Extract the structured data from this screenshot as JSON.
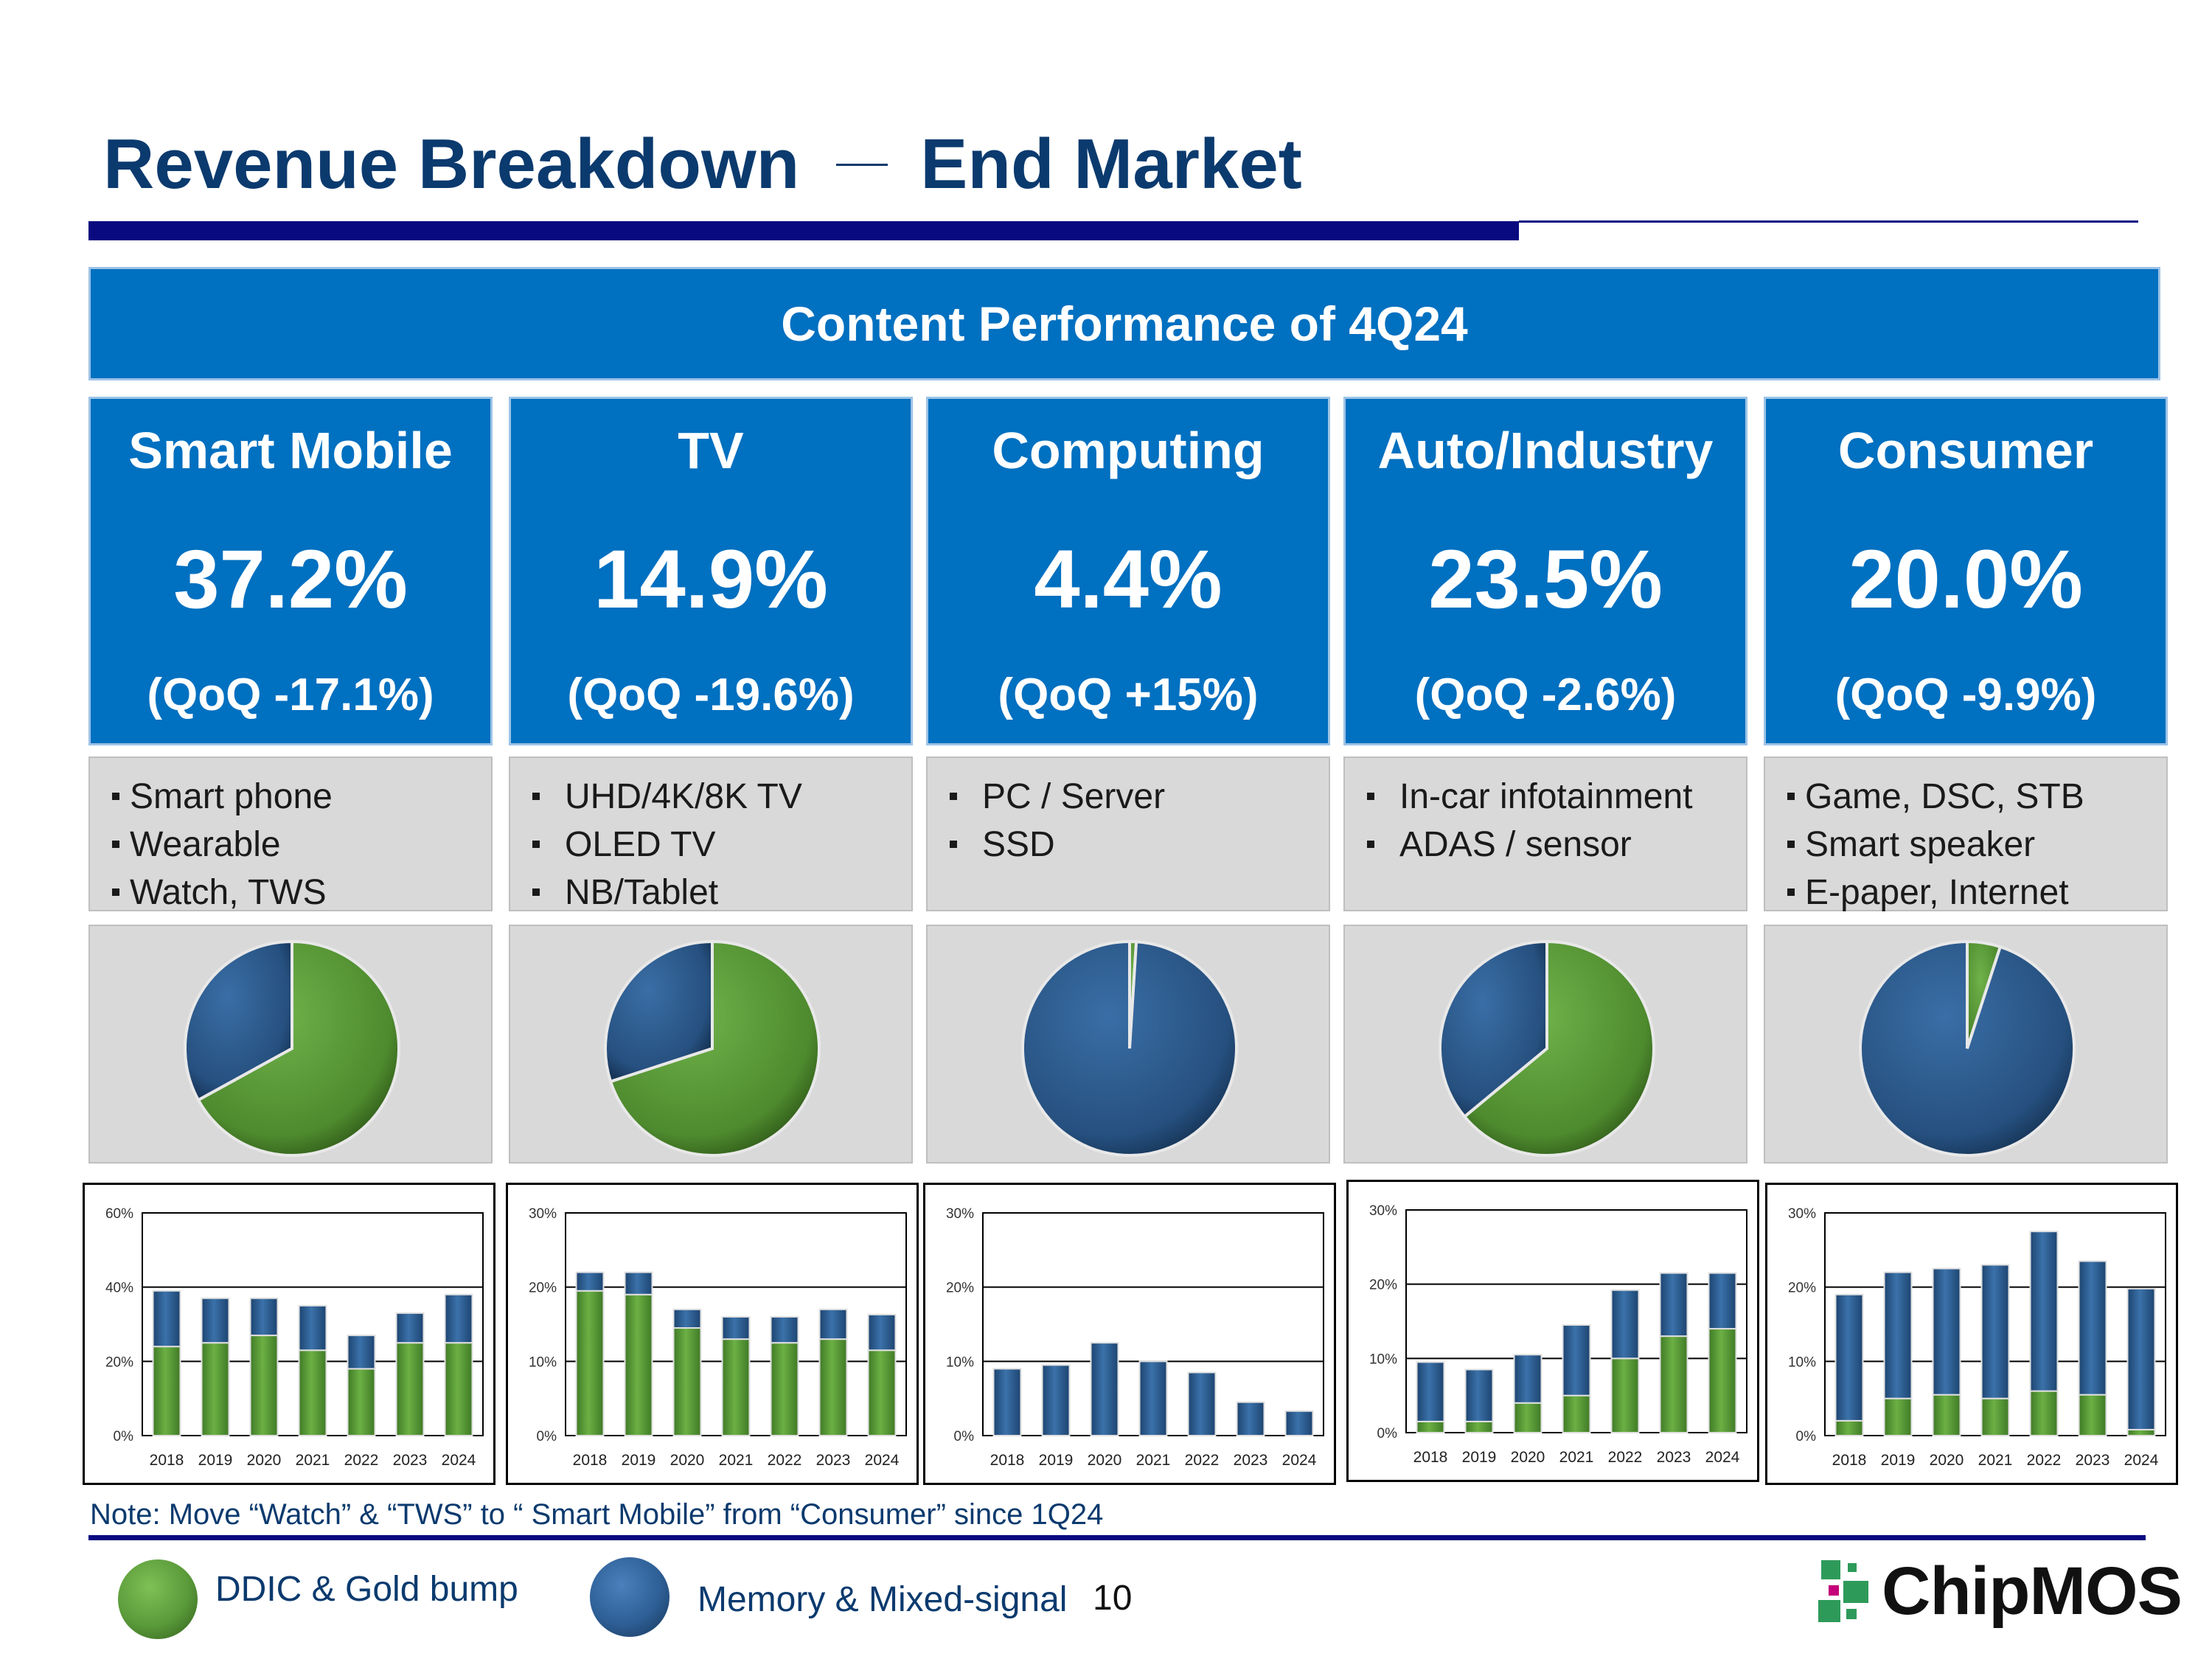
{
  "title_left": "Revenue Breakdown",
  "title_right": "End Market",
  "banner": "Content Performance of 4Q24",
  "markets": [
    {
      "name": "Smart Mobile",
      "pct": "37.2%",
      "qoq": "(QoQ -17.1%)",
      "bullets": [
        "Smart phone",
        "Wearable",
        "Watch, TWS"
      ]
    },
    {
      "name": "TV",
      "pct": "14.9%",
      "qoq": "(QoQ -19.6%)",
      "bullets": [
        "UHD/4K/8K TV",
        "OLED TV",
        "NB/Tablet"
      ]
    },
    {
      "name": "Computing",
      "pct": "4.4%",
      "qoq": "(QoQ +15%)",
      "bullets": [
        "PC / Server",
        "SSD"
      ]
    },
    {
      "name": "Auto/Industry",
      "pct": "23.5%",
      "qoq": "(QoQ -2.6%)",
      "bullets": [
        "In-car infotainment",
        "ADAS / sensor"
      ]
    },
    {
      "name": "Consumer",
      "pct": "20.0%",
      "qoq": "(QoQ -9.9%)",
      "bullets": [
        "Game, DSC, STB",
        "Smart speaker",
        "E-paper, Internet"
      ]
    }
  ],
  "chart_data": [
    {
      "type": "pie",
      "market": "Smart Mobile",
      "slices": [
        {
          "name": "DDIC & Gold bump",
          "value": 67
        },
        {
          "name": "Memory & Mixed-signal",
          "value": 33
        }
      ]
    },
    {
      "type": "pie",
      "market": "TV",
      "slices": [
        {
          "name": "DDIC & Gold bump",
          "value": 70
        },
        {
          "name": "Memory & Mixed-signal",
          "value": 30
        }
      ]
    },
    {
      "type": "pie",
      "market": "Computing",
      "slices": [
        {
          "name": "DDIC & Gold bump",
          "value": 1
        },
        {
          "name": "Memory & Mixed-signal",
          "value": 99
        }
      ]
    },
    {
      "type": "pie",
      "market": "Auto/Industry",
      "slices": [
        {
          "name": "DDIC & Gold bump",
          "value": 64
        },
        {
          "name": "Memory & Mixed-signal",
          "value": 36
        }
      ]
    },
    {
      "type": "pie",
      "market": "Consumer",
      "slices": [
        {
          "name": "DDIC & Gold bump",
          "value": 5
        },
        {
          "name": "Memory & Mixed-signal",
          "value": 95
        }
      ]
    },
    {
      "type": "bar",
      "stacked": true,
      "market": "Smart Mobile",
      "categories": [
        "2018",
        "2019",
        "2020",
        "2021",
        "2022",
        "2023",
        "2024"
      ],
      "yticks": [
        "0%",
        "20%",
        "40%",
        "60%"
      ],
      "ylim": [
        0,
        60
      ],
      "series": [
        {
          "name": "DDIC & Gold bump",
          "values": [
            24,
            25,
            27,
            23,
            18,
            25,
            25
          ]
        },
        {
          "name": "Memory & Mixed-signal",
          "values": [
            15,
            12,
            10,
            12,
            9,
            8,
            13
          ]
        }
      ]
    },
    {
      "type": "bar",
      "stacked": true,
      "market": "TV",
      "categories": [
        "2018",
        "2019",
        "2020",
        "2021",
        "2022",
        "2023",
        "2024"
      ],
      "yticks": [
        "0%",
        "10%",
        "20%",
        "30%"
      ],
      "ylim": [
        0,
        30
      ],
      "series": [
        {
          "name": "DDIC & Gold bump",
          "values": [
            19.5,
            19,
            14.5,
            13,
            12.5,
            13,
            11.5
          ]
        },
        {
          "name": "Memory & Mixed-signal",
          "values": [
            2.5,
            3,
            2.5,
            3,
            3.5,
            4,
            4.8
          ]
        }
      ]
    },
    {
      "type": "bar",
      "stacked": true,
      "market": "Computing",
      "categories": [
        "2018",
        "2019",
        "2020",
        "2021",
        "2022",
        "2023",
        "2024"
      ],
      "yticks": [
        "0%",
        "10%",
        "20%",
        "30%"
      ],
      "ylim": [
        0,
        30
      ],
      "series": [
        {
          "name": "DDIC & Gold bump",
          "values": [
            0,
            0,
            0,
            0,
            0,
            0,
            0
          ]
        },
        {
          "name": "Memory & Mixed-signal",
          "values": [
            9,
            9.5,
            12.5,
            10,
            8.5,
            4.5,
            3.3
          ]
        }
      ]
    },
    {
      "type": "bar",
      "stacked": true,
      "market": "Auto/Industry",
      "categories": [
        "2018",
        "2019",
        "2020",
        "2021",
        "2022",
        "2023",
        "2024"
      ],
      "yticks": [
        "0%",
        "10%",
        "20%",
        "30%"
      ],
      "ylim": [
        0,
        30
      ],
      "series": [
        {
          "name": "DDIC & Gold bump",
          "values": [
            1.5,
            1.5,
            4,
            5,
            10,
            13,
            14
          ]
        },
        {
          "name": "Memory & Mixed-signal",
          "values": [
            8,
            7,
            6.5,
            9.5,
            9.2,
            8.5,
            7.5
          ]
        }
      ]
    },
    {
      "type": "bar",
      "stacked": true,
      "market": "Consumer",
      "categories": [
        "2018",
        "2019",
        "2020",
        "2021",
        "2022",
        "2023",
        "2024"
      ],
      "yticks": [
        "0%",
        "10%",
        "20%",
        "30%"
      ],
      "ylim": [
        0,
        30
      ],
      "series": [
        {
          "name": "DDIC & Gold bump",
          "values": [
            2,
            5,
            5.5,
            5,
            6,
            5.5,
            0.8
          ]
        },
        {
          "name": "Memory & Mixed-signal",
          "values": [
            17,
            17,
            17,
            18,
            21.5,
            18,
            19
          ]
        }
      ]
    }
  ],
  "note": "Note: Move “Watch” & “TWS” to “ Smart Mobile” from “Consumer” since 1Q24",
  "legend": [
    {
      "label": "DDIC & Gold bump",
      "color": "#5a9a3a"
    },
    {
      "label": "Memory & Mixed-signal",
      "color": "#2e5f96"
    }
  ],
  "page_number": "10",
  "logo_text": "ChipMOS",
  "colors": {
    "green": "#5a9a3a",
    "blue": "#2e5f96",
    "accent": "#0070c0",
    "navy": "#0a0a80"
  }
}
